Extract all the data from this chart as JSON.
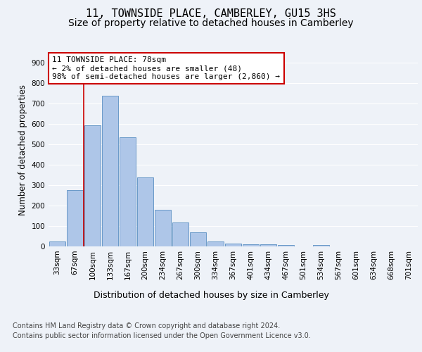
{
  "title": "11, TOWNSIDE PLACE, CAMBERLEY, GU15 3HS",
  "subtitle": "Size of property relative to detached houses in Camberley",
  "xlabel": "Distribution of detached houses by size in Camberley",
  "ylabel": "Number of detached properties",
  "categories": [
    "33sqm",
    "67sqm",
    "100sqm",
    "133sqm",
    "167sqm",
    "200sqm",
    "234sqm",
    "267sqm",
    "300sqm",
    "334sqm",
    "367sqm",
    "401sqm",
    "434sqm",
    "467sqm",
    "501sqm",
    "534sqm",
    "567sqm",
    "601sqm",
    "634sqm",
    "668sqm",
    "701sqm"
  ],
  "values": [
    25,
    275,
    595,
    740,
    535,
    338,
    178,
    118,
    68,
    25,
    15,
    12,
    10,
    8,
    0,
    8,
    0,
    0,
    0,
    0,
    0
  ],
  "bar_color": "#aec6e8",
  "bar_edge_color": "#5a8fc2",
  "vline_x": 1.5,
  "vline_color": "#cc0000",
  "annotation_line1": "11 TOWNSIDE PLACE: 78sqm",
  "annotation_line2": "← 2% of detached houses are smaller (48)",
  "annotation_line3": "98% of semi-detached houses are larger (2,860) →",
  "annotation_box_color": "#ffffff",
  "annotation_box_edge_color": "#cc0000",
  "ylim": [
    0,
    950
  ],
  "yticks": [
    0,
    100,
    200,
    300,
    400,
    500,
    600,
    700,
    800,
    900
  ],
  "bg_color": "#eef2f8",
  "plot_bg_color": "#eef2f8",
  "grid_color": "#ffffff",
  "footer_line1": "Contains HM Land Registry data © Crown copyright and database right 2024.",
  "footer_line2": "Contains public sector information licensed under the Open Government Licence v3.0.",
  "title_fontsize": 11,
  "subtitle_fontsize": 10,
  "xlabel_fontsize": 9,
  "ylabel_fontsize": 8.5,
  "tick_fontsize": 7.5,
  "annotation_fontsize": 8,
  "footer_fontsize": 7
}
